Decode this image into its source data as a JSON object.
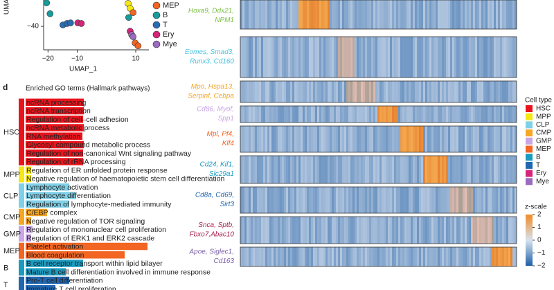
{
  "umap": {
    "type": "scatter",
    "x_label": "UMAP_1",
    "y_label": "UMA",
    "xlim": [
      -21.5,
      14.5
    ],
    "ylim": [
      -48.2,
      -30.8
    ],
    "xticks": [
      {
        "value": -20,
        "label": "−20"
      },
      {
        "value": -10,
        "label": "−10"
      },
      {
        "value": 10,
        "label": "10"
      }
    ],
    "yticks": [
      {
        "value": -40,
        "label": "−40"
      }
    ],
    "series": [
      {
        "color": "#f5e614",
        "x": [
          7.4,
          8.1
        ],
        "y": [
          -32,
          -33.7
        ]
      },
      {
        "name": "MEP",
        "color": "#f26522",
        "x": [
          9.1,
          9.8,
          10.8
        ],
        "y": [
          -35.2,
          -45.8,
          -46.8
        ]
      },
      {
        "name": "B",
        "color": "#1a9b9b",
        "x": [
          -20.5,
          -19.3,
          7.6
        ],
        "y": [
          -31.8,
          -35.6,
          -36.9
        ]
      },
      {
        "name": "T",
        "color": "#2b6cb0",
        "x": [
          -14.9,
          -13.5,
          -12.3
        ],
        "y": [
          -39.5,
          -39,
          -38.8
        ]
      },
      {
        "name": "Ery",
        "color": "#d6247a",
        "x": [
          -9.8,
          -8.6,
          8.1
        ],
        "y": [
          -38.8,
          -39,
          -41.7
        ]
      },
      {
        "name": "Mye",
        "color": "#9b6bbf",
        "x": [
          8.6,
          9.1
        ],
        "y": [
          -42.9,
          -43.6
        ]
      }
    ]
  },
  "go": {
    "type": "bar",
    "panel": "d",
    "title": "Enriched GO terms (Hallmark pathways)",
    "groups": [
      {
        "name": "HSC",
        "color": "#e8141c",
        "terms": [
          "ncRNA processing",
          "ncRNA transcription",
          "Regulation of cell–cell adhesion",
          "ncRNA metabolic process",
          "RNA methylation",
          "Glycosyl compound metabolic process",
          "Regulation of non-canonical Wnt signaling pathway",
          "Regulation of rRNA processing"
        ],
        "values": [
          84,
          84,
          83,
          84,
          82,
          84,
          83,
          83
        ]
      },
      {
        "name": "MPP",
        "color": "#f5e614",
        "terms": [
          "Regulation of ER unfolded protein response",
          "Negative regulation of haematopoietic stem cell differentiation"
        ],
        "values": [
          8,
          8
        ]
      },
      {
        "name": "CLP",
        "color": "#7fd0e8",
        "terms": [
          "Lymphocyte activation",
          "Lymphocyte differentiation",
          "Regulation of lymphocyte-mediated immunity"
        ],
        "values": [
          63,
          73,
          63
        ]
      },
      {
        "name": "CMP",
        "color": "#f5a623",
        "terms": [
          "C/EBP complex",
          "Negative regulation of TOR signaling"
        ],
        "values": [
          31,
          8
        ]
      },
      {
        "name": "GMP",
        "color": "#c9a6e6",
        "terms": [
          "Regulation of mononuclear cell proliferation",
          "Regulation of ERK1 and ERK2 cascade"
        ],
        "values": [
          10,
          8
        ]
      },
      {
        "name": "MEP",
        "color": "#f26522",
        "terms": [
          "Platelet activation",
          "Blood coagulation"
        ],
        "values": [
          176,
          143
        ]
      },
      {
        "name": "B",
        "color": "#1a9bc0",
        "terms": [
          "B cell receptor transport within lipid bilayer",
          "Mature B cell differentiation involved in immune response"
        ],
        "values": [
          83,
          58
        ]
      },
      {
        "name": "T",
        "color": "#2066b0",
        "terms": [
          "Pro-T cell differentiation",
          "Immature T cell proliferation"
        ],
        "values": [
          63,
          43
        ]
      }
    ]
  },
  "heatmap": {
    "blocks": [
      {
        "genes": [
          "Hoxa9, Ddx21,",
          "NPM1"
        ],
        "color": "#7bc142"
      },
      {
        "genes": [
          "Eomes, Smad3,",
          "Runx3, Cd160"
        ],
        "color": "#4cc4e0"
      },
      {
        "genes": [
          "Mpo, Hspa13,",
          "Serpinf, Cebpa"
        ],
        "color": "#f5a623"
      },
      {
        "genes": [
          "Cd86, Myof,",
          "Spp1"
        ],
        "color": "#c9a6e6"
      },
      {
        "genes": [
          "Mpl, Pf4,",
          "Klf4"
        ],
        "color": "#f26522"
      },
      {
        "genes": [
          "Cd24, Kif1,",
          "Slc29a1"
        ],
        "color": "#1a9bc0"
      },
      {
        "genes": [
          "Cd8a, Cd69,",
          "Sirt3"
        ],
        "color": "#2066b0"
      },
      {
        "genes": [
          "Snca, Sptb,",
          "Fbxo7,Abac10"
        ],
        "color": "#a8244e"
      },
      {
        "genes": [
          "Apoe, Siglec1,",
          "Cd163"
        ],
        "color": "#7b5ea7"
      }
    ],
    "legend_title": "Cell type",
    "cell_types": [
      {
        "name": "HSC",
        "color": "#e8141c"
      },
      {
        "name": "MPP",
        "color": "#f5e614"
      },
      {
        "name": "CLP",
        "color": "#7fd0e8"
      },
      {
        "name": "CMP",
        "color": "#f5a623"
      },
      {
        "name": "GMP",
        "color": "#c9a6e6"
      },
      {
        "name": "MEP",
        "color": "#f26522"
      },
      {
        "name": "B",
        "color": "#1a9bc0"
      },
      {
        "name": "T",
        "color": "#2066b0"
      },
      {
        "name": "Ery",
        "color": "#d6247a"
      },
      {
        "name": "Mye",
        "color": "#9b6bbf"
      }
    ],
    "scale_title": "z-scale",
    "zlim": [
      -2,
      2
    ],
    "zticks": [
      2,
      1,
      0,
      {
        "value": -1,
        "label": "−1"
      },
      {
        "value": -2,
        "label": "−2"
      }
    ]
  }
}
